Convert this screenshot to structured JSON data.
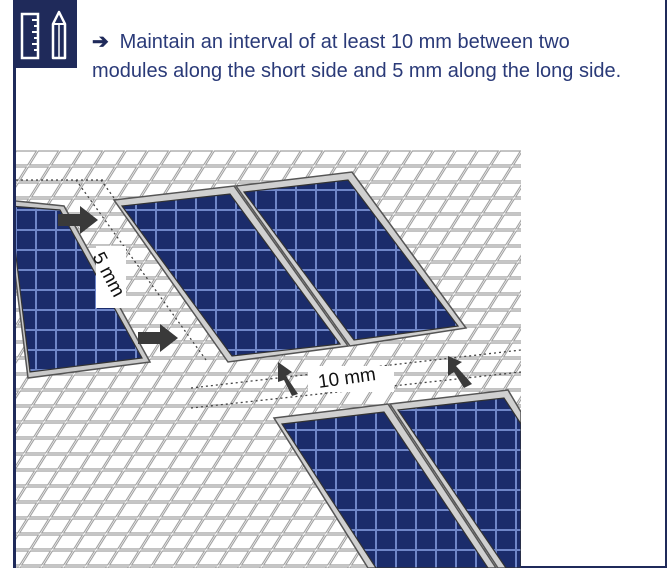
{
  "instruction": {
    "arrow": "➔",
    "text": "Maintain an interval of at least 10 mm between two modules along the short side and 5 mm along the long side."
  },
  "dimensions": {
    "short_gap": "5 mm",
    "long_gap": "10 mm"
  },
  "icons": {
    "header": "ruler-and-pencil-icon"
  },
  "colors": {
    "frame": "#1f2a5a",
    "text": "#2a3a78",
    "panel": "#1b2c6b",
    "panel_frame": "#d9d9d9"
  }
}
